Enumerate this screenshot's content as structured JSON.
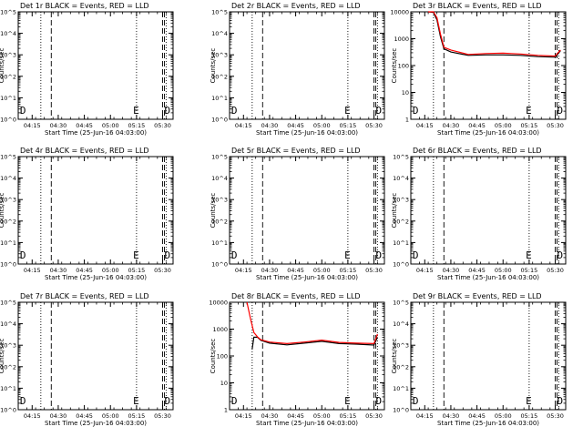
{
  "chart_data": [
    {
      "type": "line",
      "title": "Det 1r BLACK = Events, RED = LLD",
      "xlabel": "Start Time (25-Jun-16 04:03:00)",
      "ylabel": "Counts/sec",
      "yscale": "log",
      "ylim": [
        1,
        10000
      ],
      "ytick_labels": [
        "10^0",
        "10^1",
        "10^2",
        "10^3",
        "10^4",
        "10^5"
      ],
      "xtick_labels": [
        "04:15",
        "04:30",
        "04:45",
        "05:00",
        "05:15",
        "05:30"
      ],
      "markers": [
        "D",
        "E",
        "D"
      ],
      "series": []
    },
    {
      "type": "line",
      "title": "Det 2r BLACK = Events, RED = LLD",
      "xlabel": "Start Time (25-Jun-16 04:03:00)",
      "ylabel": "Counts/sec",
      "yscale": "log",
      "ylim": [
        1,
        10000
      ],
      "ytick_labels": [
        "10^0",
        "10^1",
        "10^2",
        "10^3",
        "10^4",
        "10^5"
      ],
      "xtick_labels": [
        "04:15",
        "04:30",
        "04:45",
        "05:00",
        "05:15",
        "05:30"
      ],
      "markers": [
        "D",
        "E",
        "D"
      ],
      "series": []
    },
    {
      "type": "line",
      "title": "Det 3r BLACK = Events, RED = LLD",
      "xlabel": "Start Time (25-Jun-16 04:03:00)",
      "ylabel": "Counts/sec",
      "yscale": "log",
      "ylim": [
        1,
        10000
      ],
      "ytick_labels": [
        "1",
        "10",
        "100",
        "1000",
        "10000"
      ],
      "xtick_labels": [
        "04:15",
        "04:30",
        "04:45",
        "05:00",
        "05:15",
        "05:30"
      ],
      "markers": [
        "D",
        "E",
        "D"
      ],
      "series": [
        {
          "color": "#000000",
          "x": [
            "04:17",
            "04:20",
            "04:22",
            "04:24",
            "04:26",
            "04:30",
            "04:40",
            "04:50",
            "05:00",
            "05:10",
            "05:20",
            "05:30",
            "05:33"
          ],
          "y": [
            10000,
            9500,
            5000,
            1200,
            420,
            320,
            240,
            250,
            250,
            240,
            215,
            205,
            360
          ]
        },
        {
          "color": "#ff0000",
          "x": [
            "04:17",
            "04:20",
            "04:22",
            "04:24",
            "04:26",
            "04:30",
            "04:40",
            "04:50",
            "05:00",
            "05:10",
            "05:20",
            "05:30",
            "05:33"
          ],
          "y": [
            10000,
            10000,
            6000,
            1500,
            480,
            380,
            260,
            280,
            290,
            270,
            240,
            225,
            380
          ]
        }
      ]
    },
    {
      "type": "line",
      "title": "Det 4r BLACK = Events, RED = LLD",
      "xlabel": "Start Time (25-Jun-16 04:03:00)",
      "ylabel": "Counts/sec",
      "yscale": "log",
      "ylim": [
        1,
        10000
      ],
      "ytick_labels": [
        "10^0",
        "10^1",
        "10^2",
        "10^3",
        "10^4",
        "10^5"
      ],
      "xtick_labels": [
        "04:15",
        "04:30",
        "04:45",
        "05:00",
        "05:15",
        "05:30"
      ],
      "markers": [
        "D",
        "E",
        "D"
      ],
      "series": []
    },
    {
      "type": "line",
      "title": "Det 5r BLACK = Events, RED = LLD",
      "xlabel": "Start Time (25-Jun-16 04:03:00)",
      "ylabel": "Counts/sec",
      "yscale": "log",
      "ylim": [
        1,
        10000
      ],
      "ytick_labels": [
        "10^0",
        "10^1",
        "10^2",
        "10^3",
        "10^4",
        "10^5"
      ],
      "xtick_labels": [
        "04:15",
        "04:30",
        "04:45",
        "05:00",
        "05:15",
        "05:30"
      ],
      "markers": [
        "D",
        "E",
        "D"
      ],
      "series": []
    },
    {
      "type": "line",
      "title": "Det 6r BLACK = Events, RED = LLD",
      "xlabel": "Start Time (25-Jun-16 04:03:00)",
      "ylabel": "Counts/sec",
      "yscale": "log",
      "ylim": [
        1,
        10000
      ],
      "ytick_labels": [
        "10^0",
        "10^1",
        "10^2",
        "10^3",
        "10^4",
        "10^5"
      ],
      "xtick_labels": [
        "04:15",
        "04:30",
        "04:45",
        "05:00",
        "05:15",
        "05:30"
      ],
      "markers": [
        "D",
        "E",
        "D"
      ],
      "series": []
    },
    {
      "type": "line",
      "title": "Det 7r BLACK = Events, RED = LLD",
      "xlabel": "Start Time (25-Jun-16 04:03:00)",
      "ylabel": "Counts/sec",
      "yscale": "log",
      "ylim": [
        1,
        10000
      ],
      "ytick_labels": [
        "10^0",
        "10^1",
        "10^2",
        "10^3",
        "10^4",
        "10^5"
      ],
      "xtick_labels": [
        "04:15",
        "04:30",
        "04:45",
        "05:00",
        "05:15",
        "05:30"
      ],
      "markers": [
        "D",
        "E",
        "D"
      ],
      "series": []
    },
    {
      "type": "line",
      "title": "Det 8r BLACK = Events, RED = LLD",
      "xlabel": "Start Time (25-Jun-16 04:03:00)",
      "ylabel": "Counts/sec",
      "yscale": "log",
      "ylim": [
        1,
        10000
      ],
      "ytick_labels": [
        "1",
        "10",
        "100",
        "1000",
        "10000"
      ],
      "xtick_labels": [
        "04:15",
        "04:30",
        "04:45",
        "05:00",
        "05:15",
        "05:30"
      ],
      "markers": [
        "D",
        "E",
        "D"
      ],
      "series": [
        {
          "color": "#000000",
          "x": [
            "04:20",
            "04:21",
            "04:23",
            "04:25",
            "04:30",
            "04:40",
            "04:50",
            "05:00",
            "05:10",
            "05:20",
            "05:30",
            "05:32"
          ],
          "y": [
            180,
            500,
            500,
            380,
            300,
            260,
            300,
            350,
            290,
            275,
            255,
            500
          ]
        },
        {
          "color": "#ff0000",
          "x": [
            "04:17",
            "04:19",
            "04:21",
            "04:23",
            "04:25",
            "04:30",
            "04:40",
            "04:50",
            "05:00",
            "05:10",
            "05:20",
            "05:30",
            "05:32"
          ],
          "y": [
            10000,
            2500,
            750,
            520,
            400,
            330,
            290,
            330,
            390,
            320,
            300,
            290,
            650
          ]
        }
      ]
    },
    {
      "type": "line",
      "title": "Det 9r BLACK = Events, RED = LLD",
      "xlabel": "Start Time (25-Jun-16 04:03:00)",
      "ylabel": "Counts/sec",
      "yscale": "log",
      "ylim": [
        1,
        10000
      ],
      "ytick_labels": [
        "10^0",
        "10^1",
        "10^2",
        "10^3",
        "10^4",
        "10^5"
      ],
      "xtick_labels": [
        "04:15",
        "04:30",
        "04:45",
        "05:00",
        "05:15",
        "05:30"
      ],
      "markers": [
        "D",
        "E",
        "D"
      ],
      "series": []
    }
  ]
}
